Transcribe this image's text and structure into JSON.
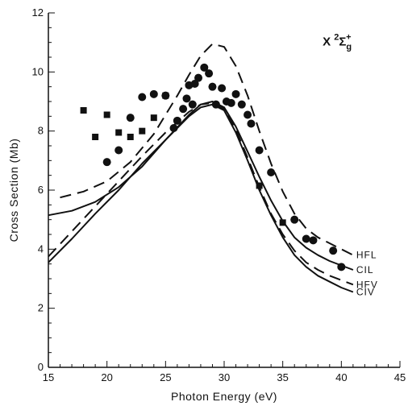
{
  "chart_data": {
    "type": "line",
    "xlabel": "Photon Energy (eV)",
    "ylabel": "Cross Section (Mb)",
    "xlim": [
      15,
      45
    ],
    "ylim": [
      0,
      12
    ],
    "x_ticks": [
      "15",
      "20",
      "25",
      "30",
      "35",
      "40",
      "45"
    ],
    "y_ticks": [
      "0",
      "2",
      "4",
      "6",
      "8",
      "10",
      "12"
    ],
    "state_label": {
      "base": "X",
      "superscript": "2",
      "symbol": "Σ",
      "subscript": "g",
      "superscript2": "+"
    },
    "series": [
      {
        "name": "HFL",
        "style": "dashed",
        "x": [
          16,
          18,
          20,
          22,
          24,
          26,
          27,
          28,
          29,
          30,
          31,
          32,
          33,
          34,
          35,
          36,
          37,
          38,
          39,
          40,
          41
        ],
        "y": [
          5.75,
          5.95,
          6.3,
          6.95,
          7.9,
          9.2,
          9.9,
          10.55,
          10.95,
          10.85,
          10.2,
          9.2,
          8.0,
          6.9,
          5.95,
          5.2,
          4.7,
          4.4,
          4.2,
          4.0,
          3.8
        ]
      },
      {
        "name": "CIL",
        "style": "solid",
        "x": [
          15,
          17,
          19,
          21,
          23,
          25,
          27,
          28,
          29,
          30,
          31,
          32,
          33,
          34,
          35,
          36,
          37,
          38,
          39,
          40,
          41
        ],
        "y": [
          5.15,
          5.3,
          5.6,
          6.1,
          6.8,
          7.7,
          8.55,
          8.9,
          9.0,
          8.8,
          8.15,
          7.3,
          6.45,
          5.65,
          4.95,
          4.4,
          4.05,
          3.8,
          3.6,
          3.45,
          3.3
        ]
      },
      {
        "name": "HFV",
        "style": "dashed",
        "x": [
          15,
          17,
          19,
          21,
          23,
          25,
          27,
          28,
          29,
          30,
          31,
          32,
          33,
          34,
          35,
          36,
          37,
          38,
          39,
          40,
          41
        ],
        "y": [
          3.75,
          4.6,
          5.45,
          6.3,
          7.15,
          7.95,
          8.65,
          8.9,
          8.95,
          8.75,
          8.05,
          7.1,
          6.1,
          5.2,
          4.5,
          3.95,
          3.55,
          3.3,
          3.1,
          2.95,
          2.8
        ]
      },
      {
        "name": "CIV",
        "style": "solid",
        "x": [
          15,
          17,
          19,
          21,
          23,
          25,
          27,
          28,
          29,
          30,
          31,
          32,
          33,
          34,
          35,
          36,
          37,
          38,
          39,
          40,
          41
        ],
        "y": [
          3.55,
          4.35,
          5.2,
          6.0,
          6.9,
          7.7,
          8.5,
          8.8,
          8.9,
          8.7,
          7.95,
          7.0,
          6.0,
          5.15,
          4.4,
          3.8,
          3.4,
          3.1,
          2.9,
          2.7,
          2.55
        ]
      }
    ],
    "points": {
      "circles": {
        "x": [
          20,
          21,
          22,
          23,
          24,
          25,
          25.7,
          26,
          26.5,
          26.8,
          27,
          27.3,
          27.5,
          27.8,
          28.3,
          28.7,
          29,
          29.3,
          29.8,
          30.2,
          30.6,
          31,
          31.5,
          32,
          32.3,
          33,
          34,
          36,
          37,
          37.6,
          39.3,
          40
        ],
        "y": [
          6.95,
          7.35,
          8.45,
          9.15,
          9.25,
          9.2,
          8.1,
          8.35,
          8.75,
          9.1,
          9.55,
          8.9,
          9.6,
          9.8,
          10.15,
          9.95,
          9.5,
          8.9,
          9.45,
          9.0,
          8.95,
          9.25,
          8.9,
          8.55,
          8.25,
          7.35,
          6.6,
          5.0,
          4.35,
          4.3,
          3.95,
          3.4
        ]
      },
      "squares": {
        "x": [
          18,
          19,
          20,
          21,
          22,
          23,
          24,
          25,
          33,
          35
        ],
        "y": [
          8.7,
          7.8,
          8.55,
          7.95,
          7.8,
          8.0,
          8.45,
          9.2,
          6.15,
          4.9
        ]
      }
    }
  }
}
